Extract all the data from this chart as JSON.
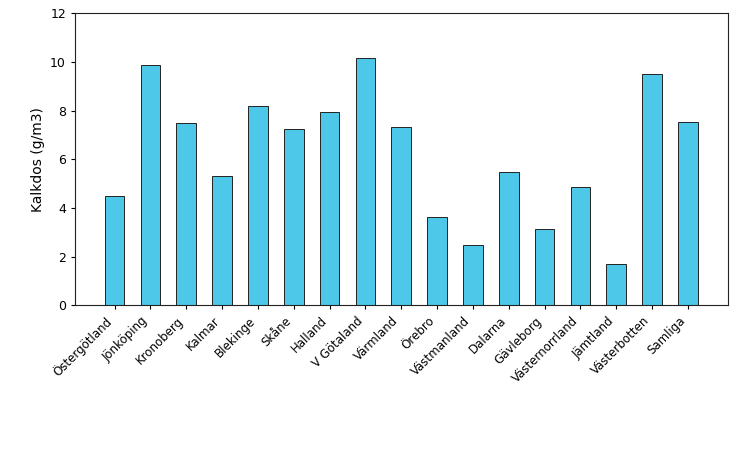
{
  "categories": [
    "Östergötland",
    "Jönköping",
    "Kronoberg",
    "Kalmar",
    "Blekinge",
    "Skåne",
    "Halland",
    "V Götaland",
    "Värmland",
    "Örebro",
    "Västmanland",
    "Dalarna",
    "Gävleborg",
    "Västernorrland",
    "Jämtland",
    "Västerbotten",
    "Samliga"
  ],
  "values": [
    4.5,
    9.9,
    7.5,
    5.3,
    8.2,
    7.25,
    7.95,
    10.15,
    7.35,
    3.65,
    2.5,
    5.5,
    3.15,
    4.85,
    1.7,
    9.5,
    7.55
  ],
  "bar_color": "#4DC8E8",
  "bar_edge_color": "#222222",
  "ylabel": "Kalkdos (g/m3)",
  "ylim": [
    0,
    12
  ],
  "yticks": [
    0,
    2,
    4,
    6,
    8,
    10,
    12
  ],
  "background_color": "#ffffff",
  "bar_edge_width": 0.7,
  "bar_width": 0.55
}
